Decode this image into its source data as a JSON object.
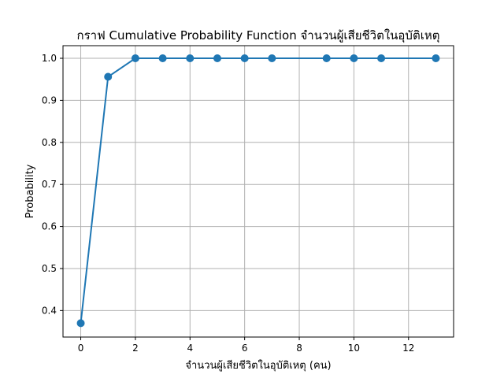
{
  "chart_data": {
    "type": "line",
    "title": "กราฟ Cumulative Probability Function จำนวนผู้เสียชีวิตในอุบัติเหตุ",
    "xlabel": "จำนวนผู้เสียชีวิตในอุบัติเหตุ (คน)",
    "ylabel": "Probability",
    "xlim": [
      -0.65,
      13.65
    ],
    "ylim": [
      0.337,
      1.03
    ],
    "xticks": [
      0,
      2,
      4,
      6,
      8,
      10,
      12
    ],
    "yticks": [
      0.4,
      0.5,
      0.6,
      0.7,
      0.8,
      0.9,
      1.0
    ],
    "grid": true,
    "series": [
      {
        "color": "#1f77b4",
        "marker": "circle",
        "x": [
          0,
          1,
          2,
          3,
          4,
          5,
          6,
          7,
          9,
          10,
          11,
          13
        ],
        "y": [
          0.37,
          0.956,
          1.0,
          1.0,
          1.0,
          1.0,
          1.0,
          1.0,
          1.0,
          1.0,
          1.0,
          1.0
        ]
      }
    ]
  }
}
